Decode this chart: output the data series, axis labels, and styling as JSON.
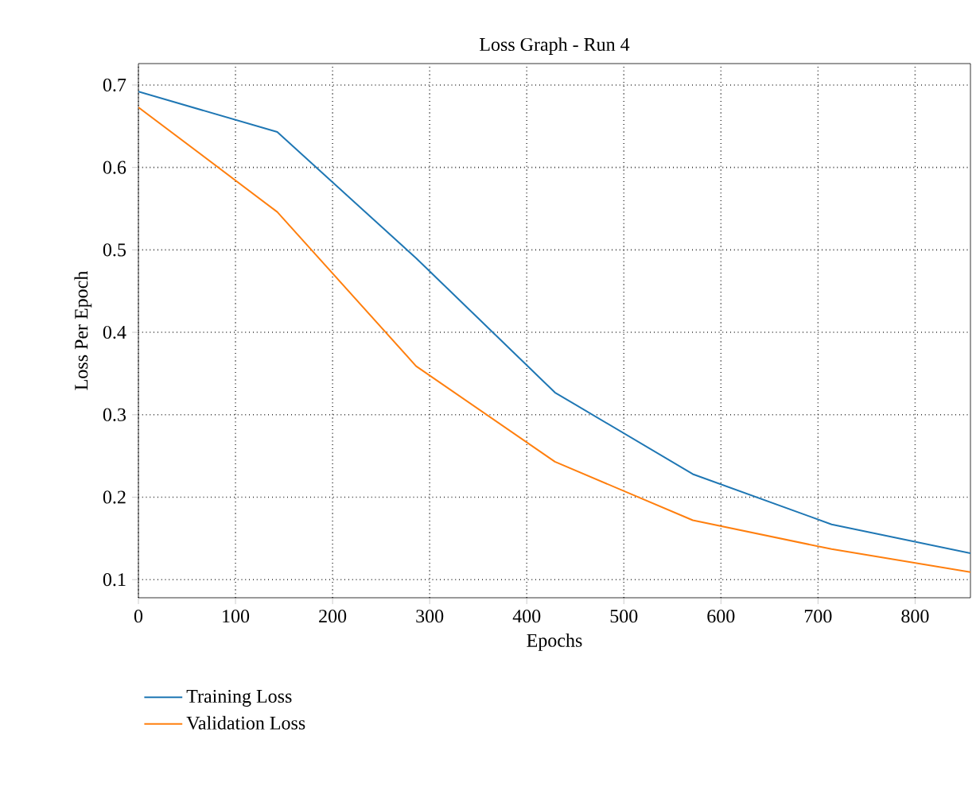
{
  "chart_data": {
    "type": "line",
    "title": "Loss Graph - Run 4",
    "xlabel": "Epochs",
    "ylabel": "Loss Per Epoch",
    "x": [
      0,
      143,
      286,
      429,
      571,
      714,
      857
    ],
    "series": [
      {
        "name": "Training Loss",
        "color": "#1f77b4",
        "values": [
          0.692,
          0.643,
          0.49,
          0.327,
          0.228,
          0.167,
          0.132
        ]
      },
      {
        "name": "Validation Loss",
        "color": "#ff7f0e",
        "values": [
          0.673,
          0.546,
          0.359,
          0.243,
          0.172,
          0.137,
          0.109
        ]
      }
    ],
    "xlim": [
      0,
      857
    ],
    "ylim": [
      0.078,
      0.726
    ],
    "xticks": [
      0,
      100,
      200,
      300,
      400,
      500,
      600,
      700,
      800
    ],
    "yticks": [
      0.1,
      0.2,
      0.3,
      0.4,
      0.5,
      0.6,
      0.7
    ],
    "grid": true,
    "legend": "bottom left",
    "marker": "none",
    "line_style": "solid"
  }
}
